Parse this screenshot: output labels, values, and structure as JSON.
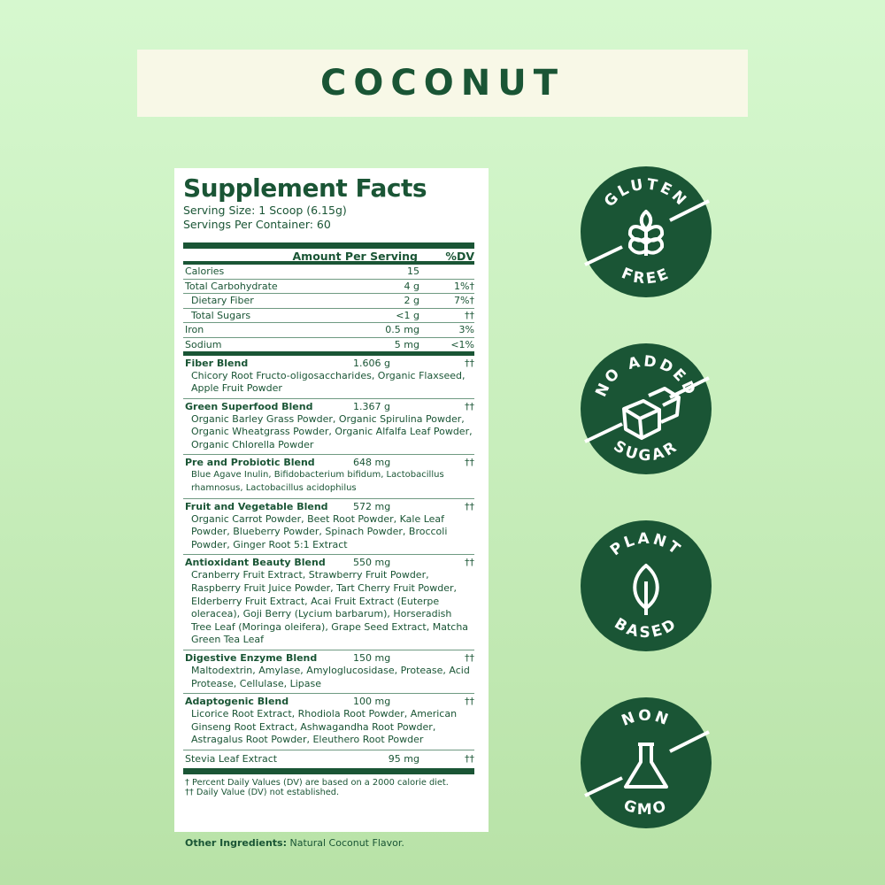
{
  "banner": {
    "title": "COCONUT"
  },
  "facts": {
    "title": "Supplement Facts",
    "serving_size": "Serving Size: 1 Scoop (6.15g)",
    "servings_per_container": "Servings Per Container: 60",
    "header": {
      "amount": "Amount Per Serving",
      "dv": "%DV"
    },
    "nutrients": [
      {
        "name": "Calories",
        "amount": "15",
        "dv": ""
      },
      {
        "name": "Total Carbohydrate",
        "amount": "4 g",
        "dv": "1%†"
      },
      {
        "name": "Dietary Fiber",
        "amount": "2 g",
        "dv": "7%†",
        "indent": true
      },
      {
        "name": "Total Sugars",
        "amount": "<1 g",
        "dv": "††",
        "indent": true
      },
      {
        "name": "Iron",
        "amount": "0.5 mg",
        "dv": "3%"
      },
      {
        "name": "Sodium",
        "amount": "5 mg",
        "dv": "<1%"
      }
    ],
    "blends": [
      {
        "name": "Fiber Blend",
        "amount": "1.606 g",
        "dv": "††",
        "ingredients": "Chicory Root Fructo-oligosaccharides, Organic Flaxseed, Apple Fruit Powder"
      },
      {
        "name": "Green Superfood Blend",
        "amount": "1.367 g",
        "dv": "††",
        "ingredients": "Organic Barley Grass Powder, Organic Spirulina Powder, Organic Wheatgrass Powder, Organic Alfalfa Leaf Powder, Organic Chlorella Powder"
      },
      {
        "name": "Pre and Probiotic Blend",
        "amount": "648 mg",
        "dv": "††",
        "ingredients": "Blue Agave Inulin, Bifidobacterium bifidum, Lactobacillus rhamnosus, Lactobacillus acidophilus"
      },
      {
        "name": "Fruit and Vegetable Blend",
        "amount": "572 mg",
        "dv": "††",
        "ingredients": "Organic Carrot Powder, Beet Root Powder, Kale Leaf Powder, Blueberry Powder, Spinach Powder, Broccoli Powder, Ginger Root 5:1 Extract"
      },
      {
        "name": "Antioxidant Beauty Blend",
        "amount": "550 mg",
        "dv": "††",
        "ingredients": "Cranberry Fruit Extract, Strawberry Fruit Powder, Raspberry Fruit Juice Powder, Tart Cherry Fruit Powder, Elderberry Fruit Extract, Acai Fruit Extract (Euterpe oleracea), Goji Berry (Lycium barbarum), Horseradish Tree Leaf (Moringa oleifera), Grape Seed Extract, Matcha Green Tea Leaf"
      },
      {
        "name": "Digestive Enzyme Blend",
        "amount": "150 mg",
        "dv": "††",
        "ingredients": "Maltodextrin, Amylase, Amyloglucosidase, Protease, Acid Protease, Cellulase, Lipase"
      },
      {
        "name": "Adaptogenic Blend",
        "amount": "100 mg",
        "dv": "††",
        "ingredients": "Licorice Root Extract, Rhodiola Root Powder, American Ginseng Root Extract, Ashwagandha Root Powder, Astragalus Root Powder, Eleuthero Root Powder"
      }
    ],
    "stevia": {
      "name": "Stevia Leaf Extract",
      "amount": "95 mg",
      "dv": "††"
    },
    "footnote1": "† Percent Daily Values (DV) are based on a 2000 calorie diet.",
    "footnote2": "†† Daily Value (DV) not established."
  },
  "other": {
    "label": "Other Ingredients:",
    "value": " Natural Coconut Flavor."
  },
  "badges": [
    {
      "icon": "wheat-icon",
      "top": "GLUTEN",
      "bottom": "FREE"
    },
    {
      "icon": "sugar-cubes-icon",
      "top": "NO ADDED",
      "bottom": "SUGAR"
    },
    {
      "icon": "leaf-icon",
      "top": "PLANT",
      "bottom": "BASED"
    },
    {
      "icon": "flask-icon",
      "top": "NON",
      "bottom": "GMO"
    }
  ],
  "colors": {
    "brand_green": "#1a5535",
    "banner": "#f8f8e7"
  }
}
